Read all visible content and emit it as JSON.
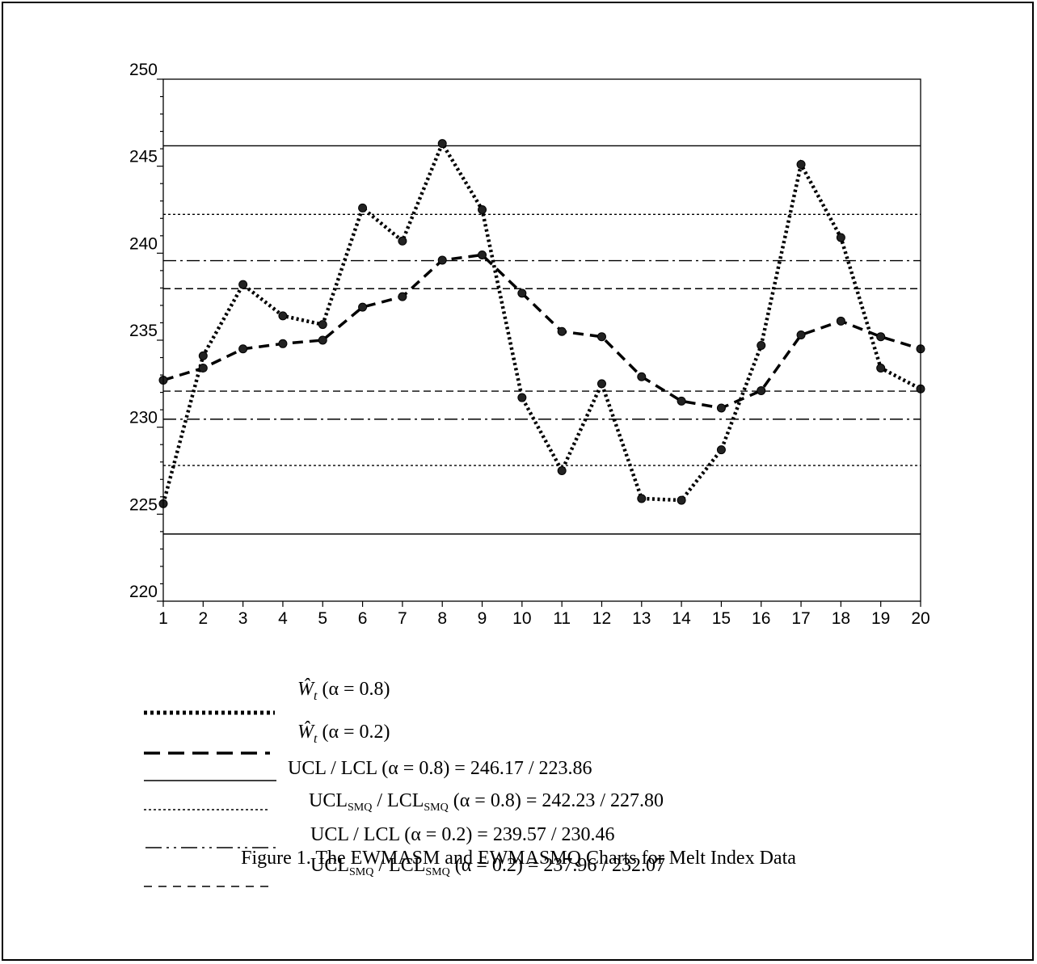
{
  "chart_data": {
    "type": "line",
    "caption": "Figure 1. The EWMASM and EWMASMQ Charts for Melt Index Data",
    "x": [
      1,
      2,
      3,
      4,
      5,
      6,
      7,
      8,
      9,
      10,
      11,
      12,
      13,
      14,
      15,
      16,
      17,
      18,
      19,
      20
    ],
    "ylim": [
      220,
      250
    ],
    "yticks": [
      220,
      225,
      230,
      235,
      240,
      245,
      250
    ],
    "grid": false,
    "series": [
      {
        "name": "Ŵt (α = 0.8)",
        "style": "dotted",
        "values": [
          225.6,
          234.1,
          238.2,
          236.4,
          235.9,
          242.6,
          240.7,
          246.3,
          242.5,
          231.7,
          227.5,
          232.5,
          225.9,
          225.8,
          228.7,
          234.7,
          245.1,
          240.9,
          233.4,
          232.2
        ]
      },
      {
        "name": "Ŵt (α = 0.2)",
        "style": "dashed",
        "values": [
          232.7,
          233.4,
          234.5,
          234.8,
          235.0,
          236.9,
          237.5,
          239.6,
          239.9,
          237.7,
          235.5,
          235.2,
          232.9,
          231.5,
          231.1,
          232.1,
          235.3,
          236.1,
          235.2,
          234.5
        ]
      }
    ],
    "control_limits": [
      {
        "label_main": "UCL / LCL (α = 0.8) = 246.17 / 223.86",
        "values": [
          246.17,
          223.86
        ],
        "style": "solid"
      },
      {
        "label_pre": "UCL",
        "label_sub1": "SMQ",
        "label_mid": " / LCL",
        "label_sub2": "SMQ",
        "label_post": " (α = 0.8)  = 242.23 / 227.80",
        "values": [
          242.23,
          227.8
        ],
        "style": "fine-dotted"
      },
      {
        "label_main": "UCL / LCL (α = 0.2) = 239.57 / 230.46",
        "values": [
          239.57,
          230.46
        ],
        "style": "dash-dot"
      },
      {
        "label_pre": "UCL",
        "label_sub1": "SMQ",
        "label_mid": " / LCL",
        "label_sub2": "SMQ",
        "label_post": " (α = 0.2) = 237.96 / 232.07",
        "values": [
          237.96,
          232.07
        ],
        "style": "dashed"
      }
    ]
  }
}
